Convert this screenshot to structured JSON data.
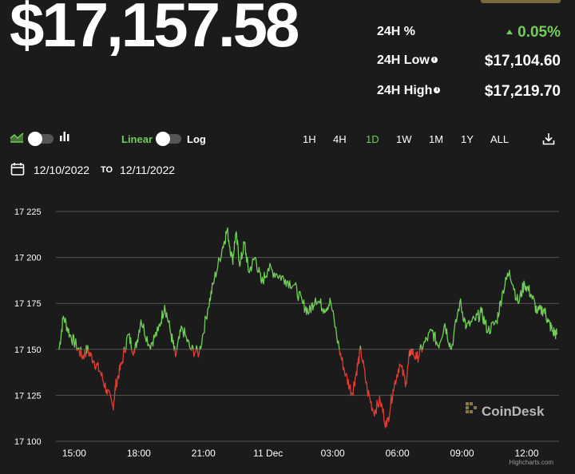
{
  "header": {
    "price": "$17,157.58"
  },
  "stats": {
    "change_label": "24H %",
    "change_value": "0.05%",
    "low_label": "24H Low",
    "low_value": "$17,104.60",
    "high_label": "24H High",
    "high_value": "$17,219.70",
    "info_glyph": "i"
  },
  "controls": {
    "scale_linear": "Linear",
    "scale_log": "Log",
    "ranges": [
      "1H",
      "4H",
      "1D",
      "1W",
      "1M",
      "1Y",
      "ALL"
    ],
    "active_range": "1D",
    "icons": [
      "area-chart-icon",
      "bar-chart-icon",
      "calendar-icon",
      "download-icon"
    ]
  },
  "dates": {
    "from": "12/10/2022",
    "to_label": "TO",
    "to": "12/11/2022"
  },
  "colors": {
    "background": "#1b1b1b",
    "up": "#6fcf57",
    "down": "#e03c31",
    "grid": "#555555"
  },
  "chart_data": {
    "type": "line",
    "ylim": [
      17100,
      17225
    ],
    "y_ticks": [
      17100,
      17125,
      17150,
      17175,
      17200,
      17225
    ],
    "y_tick_labels": [
      "17 100",
      "17 125",
      "17 150",
      "17 175",
      "17 200",
      "17 225"
    ],
    "x_ticks": [
      15,
      18,
      21,
      24,
      27,
      30,
      33,
      36
    ],
    "x_tick_labels": [
      "15:00",
      "18:00",
      "21:00",
      "11 Dec",
      "03:00",
      "06:00",
      "09:00",
      "12:00"
    ],
    "xlim": [
      14.3,
      37.5
    ],
    "baseline": 17150,
    "x": [
      14.3,
      14.5,
      14.8,
      15.1,
      15.4,
      15.6,
      15.9,
      16.2,
      16.5,
      16.8,
      16.95,
      17.2,
      17.5,
      17.8,
      18.1,
      18.5,
      18.9,
      19.2,
      19.5,
      19.7,
      20.0,
      20.4,
      20.8,
      21.2,
      21.5,
      21.9,
      22.1,
      22.35,
      22.5,
      22.7,
      22.9,
      23.1,
      23.4,
      23.7,
      24.0,
      24.4,
      24.8,
      25.2,
      25.6,
      25.9,
      26.2,
      26.6,
      26.9,
      27.3,
      27.6,
      27.9,
      28.1,
      28.3,
      28.6,
      28.9,
      29.2,
      29.5,
      29.8,
      30.1,
      30.4,
      30.6,
      30.9,
      31.2,
      31.6,
      31.9,
      32.2,
      32.5,
      32.9,
      33.2,
      33.6,
      33.9,
      34.2,
      34.6,
      34.9,
      35.2,
      35.6,
      35.9,
      36.2,
      36.5,
      36.8,
      37.0,
      37.2,
      37.4
    ],
    "y": [
      17150,
      17168,
      17158,
      17152,
      17146,
      17150,
      17144,
      17138,
      17128,
      17119,
      17132,
      17142,
      17158,
      17148,
      17166,
      17152,
      17160,
      17174,
      17158,
      17146,
      17162,
      17150,
      17148,
      17172,
      17188,
      17206,
      17215,
      17198,
      17213,
      17196,
      17208,
      17192,
      17200,
      17186,
      17194,
      17191,
      17188,
      17185,
      17175,
      17170,
      17178,
      17172,
      17176,
      17150,
      17136,
      17126,
      17138,
      17150,
      17128,
      17116,
      17122,
      17108,
      17128,
      17142,
      17132,
      17150,
      17145,
      17152,
      17160,
      17152,
      17164,
      17150,
      17176,
      17162,
      17166,
      17170,
      17160,
      17165,
      17182,
      17193,
      17175,
      17186,
      17180,
      17170,
      17172,
      17165,
      17160,
      17158
    ],
    "watermark": "CoinDesk",
    "credit": "Highcharts.com"
  }
}
